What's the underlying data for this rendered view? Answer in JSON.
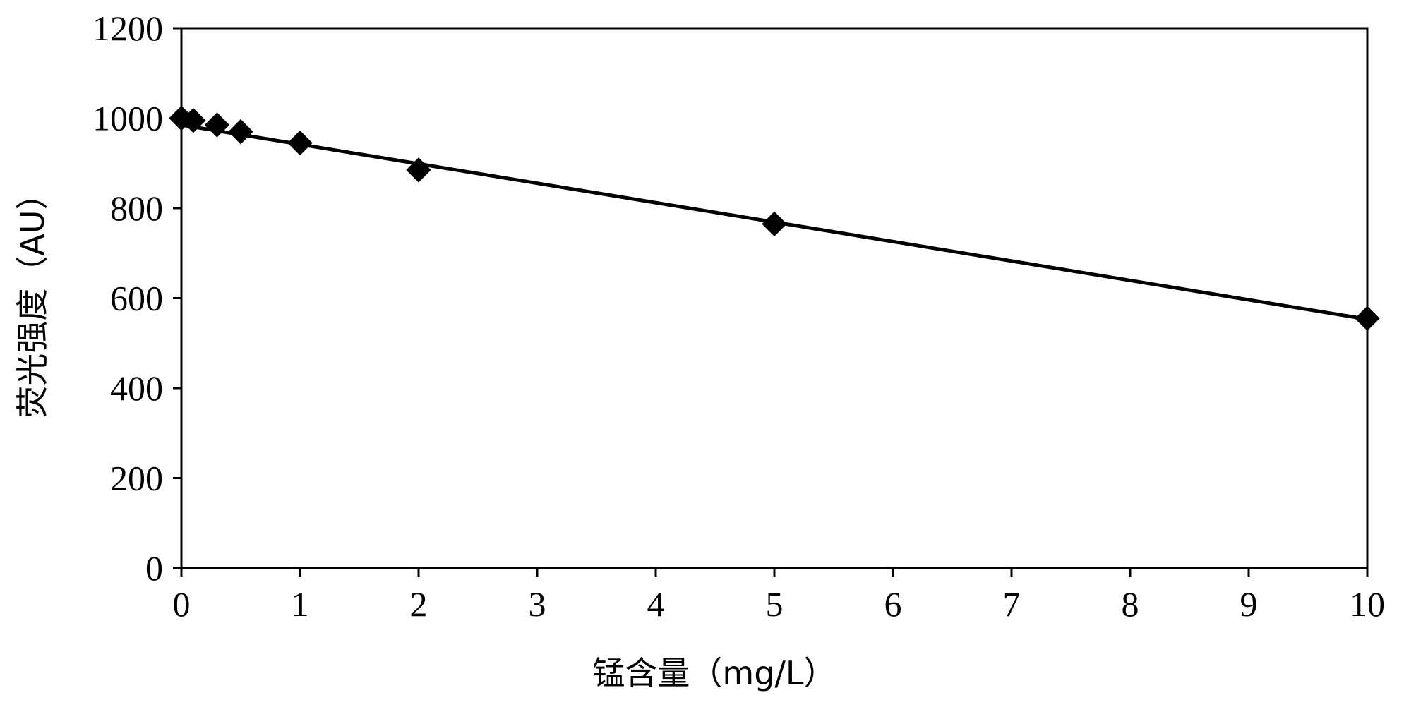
{
  "chart_data": {
    "type": "line",
    "title": "",
    "xlabel": "锰含量（mg/L）",
    "ylabel": "荧光强度（AU）",
    "xlim": [
      0,
      10
    ],
    "ylim": [
      0,
      1200
    ],
    "x_ticks": [
      0,
      1,
      2,
      3,
      4,
      5,
      6,
      7,
      8,
      9,
      10
    ],
    "y_ticks": [
      0,
      200,
      400,
      600,
      800,
      1000,
      1200
    ],
    "grid": false,
    "legend": "none",
    "series": [
      {
        "marker": "diamond",
        "color": "#000000",
        "x": [
          0,
          0.1,
          0.3,
          0.5,
          1,
          2,
          5,
          10
        ],
        "y": [
          1000,
          995,
          985,
          970,
          945,
          885,
          765,
          555
        ]
      }
    ],
    "trendline": {
      "type": "linear",
      "color": "#000000",
      "x": [
        0,
        10
      ],
      "y": [
        985,
        553
      ]
    }
  }
}
